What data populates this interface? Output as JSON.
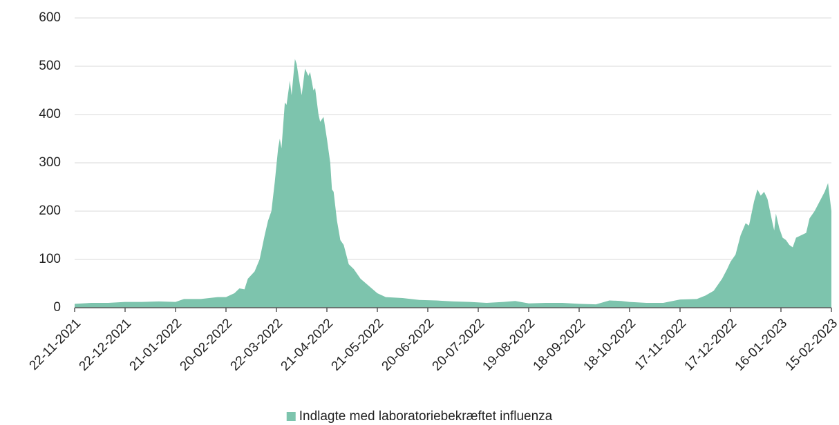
{
  "chart_data": {
    "type": "area",
    "x": [
      "22-11-2021",
      "02-12-2021",
      "12-12-2021",
      "22-12-2021",
      "01-01-2022",
      "11-01-2022",
      "21-01-2022",
      "26-01-2022",
      "05-02-2022",
      "15-02-2022",
      "20-02-2022",
      "25-02-2022",
      "28-02-2022",
      "03-03-2022",
      "05-03-2022",
      "09-03-2022",
      "12-03-2022",
      "15-03-2022",
      "17-03-2022",
      "19-03-2022",
      "21-03-2022",
      "23-03-2022",
      "24-03-2022",
      "25-03-2022",
      "27-03-2022",
      "28-03-2022",
      "30-03-2022",
      "31-03-2022",
      "02-04-2022",
      "03-04-2022",
      "05-04-2022",
      "06-04-2022",
      "08-04-2022",
      "10-04-2022",
      "11-04-2022",
      "13-04-2022",
      "14-04-2022",
      "16-04-2022",
      "17-04-2022",
      "19-04-2022",
      "21-04-2022",
      "23-04-2022",
      "24-04-2022",
      "25-04-2022",
      "27-04-2022",
      "29-04-2022",
      "01-05-2022",
      "04-05-2022",
      "07-05-2022",
      "11-05-2022",
      "16-05-2022",
      "21-05-2022",
      "26-05-2022",
      "05-06-2022",
      "15-06-2022",
      "25-06-2022",
      "05-07-2022",
      "15-07-2022",
      "25-07-2022",
      "04-08-2022",
      "11-08-2022",
      "19-08-2022",
      "29-08-2022",
      "08-09-2022",
      "18-09-2022",
      "28-09-2022",
      "06-10-2022",
      "13-10-2022",
      "18-10-2022",
      "28-10-2022",
      "07-11-2022",
      "17-11-2022",
      "27-11-2022",
      "02-12-2022",
      "07-12-2022",
      "12-12-2022",
      "15-12-2022",
      "17-12-2022",
      "20-12-2022",
      "23-12-2022",
      "26-12-2022",
      "28-12-2022",
      "31-12-2022",
      "02-01-2023",
      "04-01-2023",
      "06-01-2023",
      "08-01-2023",
      "11-01-2023",
      "12-01-2023",
      "13-01-2023",
      "15-01-2023",
      "17-01-2023",
      "19-01-2023",
      "21-01-2023",
      "23-01-2023",
      "25-01-2023",
      "28-01-2023",
      "31-01-2023",
      "02-02-2023",
      "05-02-2023",
      "08-02-2023",
      "11-02-2023",
      "13-02-2023",
      "15-02-2023"
    ],
    "series": [
      {
        "name": "Indlagte med laboratoriebekræftet influenza",
        "color": "#7dc4ad",
        "values": [
          8,
          10,
          10,
          12,
          12,
          13,
          12,
          18,
          18,
          22,
          22,
          30,
          40,
          38,
          60,
          75,
          100,
          150,
          180,
          200,
          260,
          330,
          350,
          330,
          425,
          420,
          470,
          440,
          515,
          505,
          460,
          440,
          495,
          480,
          488,
          450,
          455,
          400,
          385,
          395,
          350,
          300,
          245,
          240,
          180,
          140,
          130,
          90,
          80,
          60,
          45,
          30,
          22,
          20,
          16,
          15,
          13,
          12,
          10,
          12,
          14,
          9,
          10,
          10,
          8,
          7,
          15,
          14,
          12,
          10,
          10,
          17,
          18,
          25,
          35,
          60,
          80,
          95,
          110,
          150,
          175,
          170,
          220,
          245,
          232,
          240,
          225,
          175,
          160,
          195,
          165,
          145,
          140,
          130,
          125,
          145,
          150,
          155,
          185,
          200,
          220,
          240,
          258,
          200
        ]
      }
    ],
    "xlim": [
      "22-11-2021",
      "15-02-2023"
    ],
    "xticks": [
      "22-11-2021",
      "22-12-2021",
      "21-01-2022",
      "20-02-2022",
      "22-03-2022",
      "21-04-2022",
      "21-05-2022",
      "20-06-2022",
      "20-07-2022",
      "19-08-2022",
      "18-09-2022",
      "18-10-2022",
      "17-11-2022",
      "17-12-2022",
      "16-01-2023",
      "15-02-2023"
    ],
    "ylim": [
      0,
      600
    ],
    "yticks": [
      0,
      100,
      200,
      300,
      400,
      500,
      600
    ],
    "grid": true,
    "legend": "bottom"
  }
}
